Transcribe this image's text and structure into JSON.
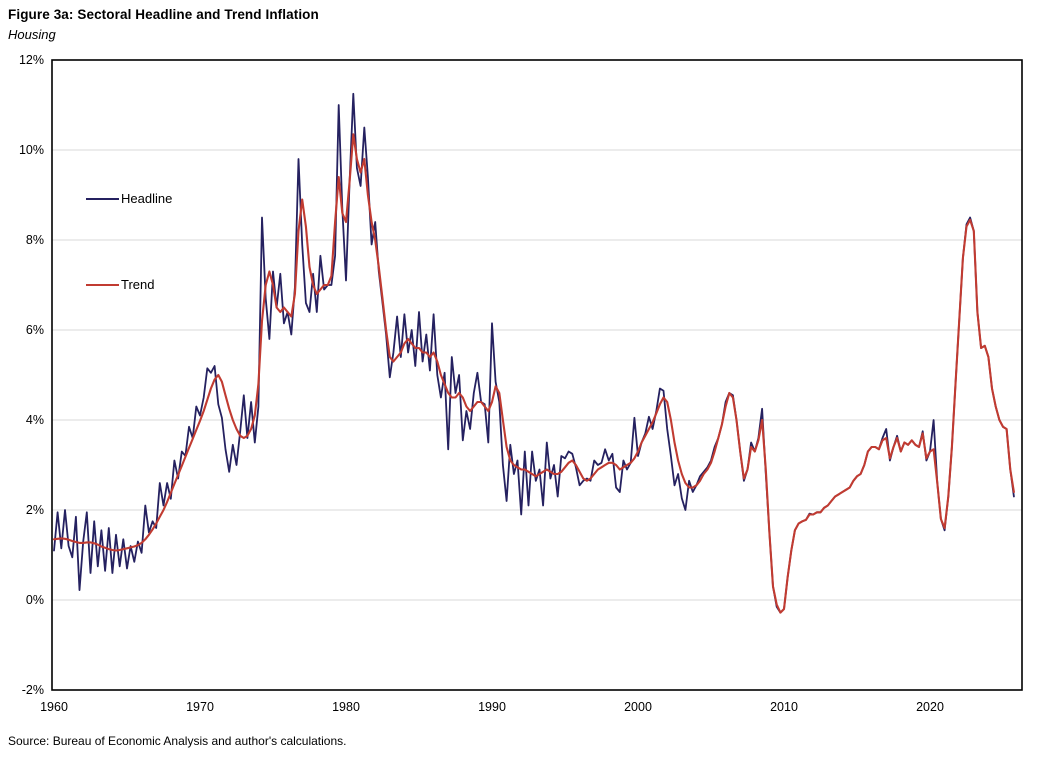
{
  "figure": {
    "title": "Figure 3a: Sectoral Headline and Trend Inflation",
    "subtitle": "Housing",
    "source": "Source: Bureau of Economic Analysis and author's calculations."
  },
  "legend": {
    "headline_label": "Headline",
    "trend_label": "Trend"
  },
  "colors": {
    "headline": "#252160",
    "trend": "#C13B31",
    "gridline": "#D9D9D9",
    "plot_border": "#000000"
  },
  "chart_data": {
    "type": "line",
    "title": "Figure 3a: Sectoral Headline and Trend Inflation",
    "subtitle": "Housing",
    "x_start_year": 1960,
    "x_step_years": 0.25,
    "x_end_year": 2025.75,
    "xlabel": "",
    "ylabel": "",
    "ylim": [
      -2,
      12
    ],
    "ytick_values": [
      12,
      10,
      8,
      6,
      4,
      2,
      0,
      -2
    ],
    "ytick_labels": [
      "12%",
      "10%",
      "8%",
      "6%",
      "4%",
      "2%",
      "0%",
      "-2%"
    ],
    "xticks": [
      1960,
      1970,
      1980,
      1990,
      2000,
      2010,
      2020
    ],
    "grid": "horizontal",
    "legend_position": "inside-top-left",
    "series": [
      {
        "name": "Headline",
        "color_key": "headline",
        "values": [
          1.1,
          1.95,
          1.15,
          2.0,
          1.2,
          0.95,
          1.85,
          0.22,
          1.3,
          1.95,
          0.6,
          1.75,
          0.75,
          1.55,
          0.65,
          1.6,
          0.6,
          1.45,
          0.75,
          1.35,
          0.7,
          1.2,
          0.85,
          1.3,
          1.05,
          2.1,
          1.5,
          1.75,
          1.6,
          2.6,
          2.1,
          2.6,
          2.25,
          3.1,
          2.7,
          3.3,
          3.2,
          3.85,
          3.6,
          4.3,
          4.1,
          4.5,
          5.15,
          5.05,
          5.2,
          4.35,
          4.05,
          3.35,
          2.85,
          3.45,
          3.0,
          3.75,
          4.55,
          3.6,
          4.4,
          3.5,
          4.3,
          8.5,
          6.7,
          5.8,
          7.3,
          6.5,
          7.25,
          6.15,
          6.4,
          5.9,
          6.95,
          9.8,
          7.9,
          6.6,
          6.4,
          7.25,
          6.4,
          7.65,
          6.9,
          7.0,
          7.0,
          7.65,
          11.0,
          8.7,
          7.1,
          9.3,
          11.25,
          9.6,
          9.2,
          10.5,
          9.4,
          7.9,
          8.4,
          7.3,
          6.6,
          5.9,
          4.95,
          5.5,
          6.3,
          5.4,
          6.35,
          5.5,
          6.0,
          5.2,
          6.4,
          5.3,
          5.9,
          5.1,
          6.35,
          5.0,
          4.5,
          5.05,
          3.35,
          5.4,
          4.6,
          5.0,
          3.55,
          4.2,
          3.8,
          4.6,
          5.05,
          4.4,
          4.35,
          3.5,
          6.15,
          4.85,
          4.4,
          3.0,
          2.2,
          3.45,
          2.8,
          3.1,
          1.9,
          3.3,
          2.1,
          3.3,
          2.65,
          2.9,
          2.1,
          3.5,
          2.7,
          3.0,
          2.3,
          3.2,
          3.15,
          3.3,
          3.25,
          2.95,
          2.55,
          2.65,
          2.7,
          2.65,
          3.1,
          3.0,
          3.05,
          3.35,
          3.1,
          3.25,
          2.5,
          2.4,
          3.1,
          2.9,
          3.05,
          4.05,
          3.2,
          3.5,
          3.7,
          4.07,
          3.8,
          4.2,
          4.7,
          4.65,
          3.8,
          3.2,
          2.55,
          2.8,
          2.26,
          2.0,
          2.65,
          2.4,
          2.55,
          2.75,
          2.85,
          2.95,
          3.1,
          3.4,
          3.6,
          3.9,
          4.4,
          4.6,
          4.55,
          4.0,
          3.3,
          2.65,
          2.9,
          3.5,
          3.3,
          3.6,
          4.25,
          2.8,
          1.5,
          0.3,
          -0.15,
          -0.28,
          -0.2,
          0.5,
          1.1,
          1.55,
          1.7,
          1.75,
          1.78,
          1.92,
          1.9,
          1.95,
          1.95,
          2.05,
          2.1,
          2.2,
          2.3,
          2.35,
          2.4,
          2.45,
          2.5,
          2.65,
          2.75,
          2.8,
          3.0,
          3.3,
          3.4,
          3.4,
          3.35,
          3.6,
          3.8,
          3.1,
          3.4,
          3.65,
          3.3,
          3.5,
          3.45,
          3.55,
          3.45,
          3.4,
          3.75,
          3.1,
          3.3,
          4.0,
          2.6,
          1.8,
          1.55,
          2.3,
          3.4,
          4.8,
          6.2,
          7.6,
          8.35,
          8.5,
          8.2,
          6.4,
          5.6,
          5.65,
          5.4,
          4.7,
          4.3,
          4.0,
          3.85,
          3.8,
          2.9,
          2.3
        ]
      },
      {
        "name": "Trend",
        "color_key": "trend",
        "values": [
          1.35,
          1.36,
          1.37,
          1.36,
          1.34,
          1.31,
          1.29,
          1.27,
          1.27,
          1.28,
          1.28,
          1.26,
          1.23,
          1.19,
          1.16,
          1.13,
          1.11,
          1.1,
          1.11,
          1.13,
          1.15,
          1.17,
          1.19,
          1.22,
          1.27,
          1.35,
          1.45,
          1.57,
          1.7,
          1.85,
          2.0,
          2.18,
          2.38,
          2.58,
          2.78,
          2.98,
          3.18,
          3.38,
          3.58,
          3.78,
          3.98,
          4.2,
          4.45,
          4.7,
          4.9,
          5.0,
          4.85,
          4.55,
          4.25,
          4.0,
          3.8,
          3.65,
          3.6,
          3.65,
          3.8,
          4.1,
          4.8,
          6.2,
          7.0,
          7.3,
          7.0,
          6.5,
          6.4,
          6.5,
          6.4,
          6.3,
          6.8,
          8.2,
          8.9,
          8.3,
          7.4,
          7.0,
          6.8,
          6.9,
          7.0,
          7.0,
          7.2,
          8.4,
          9.4,
          8.6,
          8.4,
          9.3,
          10.35,
          9.8,
          9.5,
          9.8,
          9.0,
          8.4,
          8.0,
          7.4,
          6.7,
          6.0,
          5.4,
          5.3,
          5.4,
          5.5,
          5.7,
          5.8,
          5.7,
          5.6,
          5.6,
          5.5,
          5.5,
          5.4,
          5.5,
          5.3,
          5.0,
          4.8,
          4.6,
          4.5,
          4.5,
          4.6,
          4.5,
          4.3,
          4.2,
          4.3,
          4.4,
          4.4,
          4.3,
          4.2,
          4.4,
          4.75,
          4.6,
          4.0,
          3.4,
          3.1,
          3.0,
          2.95,
          2.9,
          2.9,
          2.85,
          2.8,
          2.75,
          2.8,
          2.85,
          2.9,
          2.85,
          2.8,
          2.8,
          2.85,
          2.95,
          3.05,
          3.1,
          3.0,
          2.85,
          2.7,
          2.65,
          2.7,
          2.8,
          2.9,
          2.95,
          3.0,
          3.05,
          3.05,
          3.0,
          2.9,
          2.95,
          3.0,
          3.05,
          3.15,
          3.3,
          3.5,
          3.65,
          3.8,
          3.95,
          4.15,
          4.35,
          4.5,
          4.4,
          4.0,
          3.5,
          3.1,
          2.8,
          2.6,
          2.5,
          2.5,
          2.55,
          2.65,
          2.8,
          2.9,
          3.05,
          3.3,
          3.6,
          3.9,
          4.3,
          4.6,
          4.5,
          4.0,
          3.3,
          2.7,
          2.9,
          3.4,
          3.3,
          3.55,
          4.0,
          2.9,
          1.5,
          0.3,
          -0.1,
          -0.28,
          -0.2,
          0.5,
          1.1,
          1.55,
          1.7,
          1.75,
          1.78,
          1.9,
          1.9,
          1.95,
          1.95,
          2.05,
          2.1,
          2.2,
          2.3,
          2.35,
          2.4,
          2.45,
          2.5,
          2.65,
          2.75,
          2.8,
          3.0,
          3.3,
          3.4,
          3.4,
          3.35,
          3.55,
          3.6,
          3.15,
          3.4,
          3.6,
          3.3,
          3.5,
          3.45,
          3.55,
          3.45,
          3.4,
          3.7,
          3.15,
          3.3,
          3.35,
          2.6,
          1.8,
          1.6,
          2.3,
          3.4,
          4.8,
          6.2,
          7.6,
          8.3,
          8.45,
          8.2,
          6.4,
          5.6,
          5.65,
          5.4,
          4.7,
          4.3,
          4.0,
          3.85,
          3.8,
          2.9,
          2.4
        ]
      }
    ]
  }
}
